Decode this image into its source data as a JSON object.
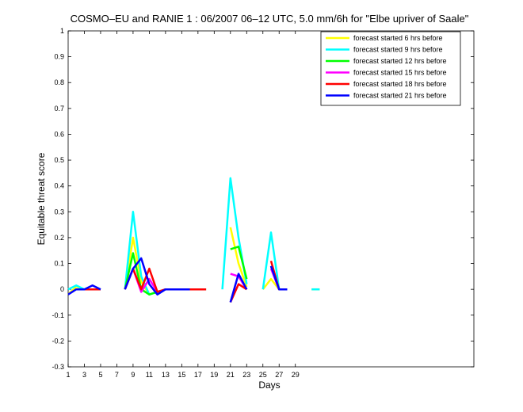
{
  "chart_data": {
    "type": "line",
    "title": "COSMO–EU and RANIE 1 : 06/2007 06–12 UTC, 5.0 mm/6h for \"Elbe upriver of Saale\"",
    "xlabel": "Days",
    "ylabel": "Equitable threat score",
    "xlim": [
      1,
      51
    ],
    "ylim": [
      -0.3,
      1
    ],
    "xticks": [
      1,
      3,
      5,
      7,
      9,
      11,
      13,
      15,
      17,
      19,
      21,
      23,
      25,
      27,
      29
    ],
    "yticks": [
      -0.3,
      -0.2,
      -0.1,
      0,
      0.1,
      0.2,
      0.3,
      0.4,
      0.5,
      0.6,
      0.7,
      0.8,
      0.9,
      1
    ],
    "legend_position": "top-right",
    "series": [
      {
        "name": "forecast started 6 hrs before",
        "color": "#ffff00",
        "x": [
          1,
          2,
          3,
          4,
          5,
          6,
          7,
          8,
          9,
          10,
          11,
          12,
          13,
          14,
          15,
          16,
          17,
          18,
          19,
          20,
          21,
          22,
          23,
          24,
          25,
          26,
          27,
          28,
          29,
          30,
          31,
          32,
          33
        ],
        "y": [
          -0.02,
          0.01,
          0,
          0,
          0,
          null,
          null,
          0,
          0.2,
          0.03,
          -0.02,
          -0.01,
          0,
          0,
          0,
          0,
          0,
          0,
          null,
          null,
          0.24,
          0.1,
          0.01,
          null,
          0,
          0.04,
          0,
          0,
          null,
          null,
          0,
          0,
          null
        ]
      },
      {
        "name": "forecast started 9 hrs before",
        "color": "#00ffff",
        "x": [
          1,
          2,
          3,
          4,
          5,
          6,
          7,
          8,
          9,
          10,
          11,
          12,
          13,
          14,
          15,
          16,
          17,
          18,
          19,
          20,
          21,
          22,
          23,
          24,
          25,
          26,
          27,
          28,
          29,
          30,
          31,
          32,
          33
        ],
        "y": [
          0,
          0.015,
          0,
          0,
          0,
          null,
          null,
          0,
          0.3,
          0.05,
          -0.02,
          -0.01,
          0,
          0,
          0,
          0,
          0,
          0,
          null,
          0,
          0.43,
          0.2,
          0.02,
          null,
          0,
          0.22,
          0,
          0,
          null,
          null,
          0,
          0,
          null
        ]
      },
      {
        "name": "forecast started 12 hrs before",
        "color": "#00ff00",
        "x": [
          1,
          2,
          3,
          4,
          5,
          6,
          7,
          8,
          9,
          10,
          11,
          12,
          13,
          14,
          15,
          16,
          17,
          18,
          19,
          20,
          21,
          22,
          23,
          24,
          25,
          26,
          27,
          28,
          29,
          30,
          31,
          32,
          33
        ],
        "y": [
          null,
          null,
          null,
          null,
          null,
          null,
          null,
          0,
          0.14,
          0,
          -0.02,
          -0.01,
          0,
          0,
          0,
          0,
          null,
          null,
          null,
          null,
          0.155,
          0.165,
          0.04,
          null,
          null,
          0.09,
          0,
          0,
          null,
          null,
          null,
          null,
          null
        ]
      },
      {
        "name": "forecast started 15 hrs before",
        "color": "#ff00ff",
        "x": [
          1,
          2,
          3,
          4,
          5,
          6,
          7,
          8,
          9,
          10,
          11,
          12,
          13,
          14,
          15,
          16,
          17,
          18,
          19,
          20,
          21,
          22,
          23,
          24,
          25,
          26,
          27,
          28,
          29,
          30,
          31,
          32,
          33
        ],
        "y": [
          null,
          null,
          null,
          null,
          null,
          null,
          null,
          0,
          0.08,
          -0.01,
          0.04,
          -0.01,
          0,
          0,
          0,
          0,
          null,
          null,
          null,
          null,
          0.06,
          0.05,
          0,
          null,
          null,
          0.08,
          0,
          0,
          null,
          null,
          null,
          null,
          null
        ]
      },
      {
        "name": "forecast started 18 hrs before",
        "color": "#ff0000",
        "x": [
          1,
          2,
          3,
          4,
          5,
          6,
          7,
          8,
          9,
          10,
          11,
          12,
          13,
          14,
          15,
          16,
          17,
          18,
          19,
          20,
          21,
          22,
          23,
          24,
          25,
          26,
          27,
          28,
          29,
          30,
          31,
          32,
          33
        ],
        "y": [
          null,
          null,
          0,
          0,
          0,
          null,
          null,
          0,
          0.08,
          0,
          0.08,
          -0.01,
          0,
          0,
          0,
          0,
          0,
          0,
          null,
          null,
          -0.05,
          0.02,
          0,
          null,
          null,
          0.11,
          0,
          0,
          null,
          null,
          null,
          null,
          null
        ]
      },
      {
        "name": "forecast started 21 hrs before",
        "color": "#0000ff",
        "x": [
          1,
          2,
          3,
          4,
          5,
          6,
          7,
          8,
          9,
          10,
          11,
          12,
          13,
          14,
          15,
          16,
          17,
          18,
          19,
          20,
          21,
          22,
          23,
          24,
          25,
          26,
          27,
          28,
          29,
          30,
          31,
          32,
          33
        ],
        "y": [
          -0.02,
          0,
          0,
          0.015,
          0,
          null,
          null,
          0,
          0.08,
          0.12,
          0.02,
          -0.02,
          0,
          0,
          0,
          0,
          null,
          null,
          null,
          null,
          -0.05,
          0.06,
          0,
          null,
          null,
          0.09,
          0,
          0,
          null,
          null,
          null,
          0,
          null
        ]
      }
    ]
  }
}
